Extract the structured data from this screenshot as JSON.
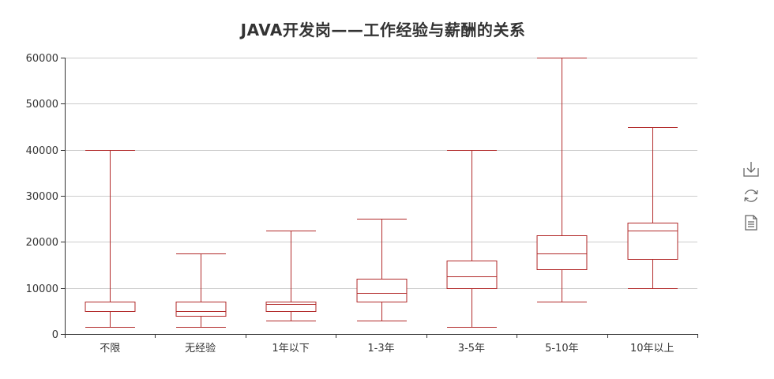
{
  "chart_data": {
    "type": "boxplot",
    "title": "JAVA开发岗——工作经验与薪酬的关系",
    "categories": [
      "不限",
      "无经验",
      "1年以下",
      "1-3年",
      "3-5年",
      "5-10年",
      "10年以上"
    ],
    "series": [
      {
        "values": [
          {
            "min": 1500,
            "q1": 5000,
            "median": 5000,
            "q3": 7000,
            "max": 40000
          },
          {
            "min": 1500,
            "q1": 4000,
            "median": 5000,
            "q3": 7000,
            "max": 17500
          },
          {
            "min": 3000,
            "q1": 5000,
            "median": 6500,
            "q3": 7000,
            "max": 22500
          },
          {
            "min": 3000,
            "q1": 7000,
            "median": 9000,
            "q3": 12000,
            "max": 25000
          },
          {
            "min": 1500,
            "q1": 10000,
            "median": 12500,
            "q3": 16000,
            "max": 40000
          },
          {
            "min": 7000,
            "q1": 14000,
            "median": 17500,
            "q3": 21500,
            "max": 60000
          },
          {
            "min": 10000,
            "q1": 16250,
            "median": 22500,
            "q3": 24250,
            "max": 45000
          }
        ]
      }
    ],
    "y_ticks": [
      0,
      10000,
      20000,
      30000,
      40000,
      50000,
      60000
    ],
    "ylim": [
      0,
      60000
    ],
    "grid": true,
    "colors": {
      "box": "#b22a2a",
      "grid": "#cccccc",
      "axis": "#333333",
      "text": "#333333"
    }
  },
  "toolbox": {
    "icons": [
      "download-icon",
      "refresh-icon",
      "data-view-icon"
    ]
  }
}
